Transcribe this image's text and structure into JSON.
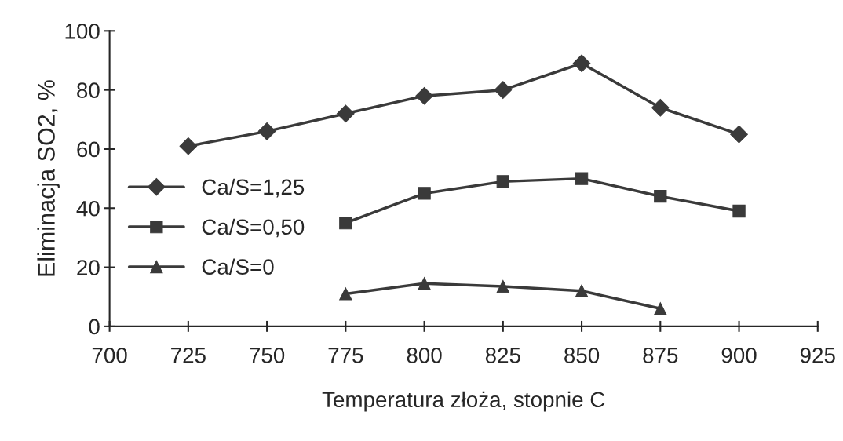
{
  "chart_data": {
    "type": "line",
    "xlabel": "Temperatura złoża, stopnie C",
    "ylabel": "Eliminacja SO2, %",
    "xlim": [
      700,
      925
    ],
    "xticks": [
      700,
      725,
      750,
      775,
      800,
      825,
      850,
      875,
      900,
      925
    ],
    "ylim": [
      0,
      100
    ],
    "yticks": [
      0,
      20,
      40,
      60,
      80,
      100
    ],
    "grid": false,
    "legend": "left",
    "series": [
      {
        "name": "Ca/S=1,25",
        "color": "#3a3a3a",
        "marker": "diamond",
        "x": [
          725,
          750,
          775,
          800,
          825,
          850,
          875,
          900
        ],
        "values": [
          61,
          66,
          72,
          78,
          80,
          89,
          74,
          65
        ]
      },
      {
        "name": "Ca/S=0,50",
        "color": "#3a3a3a",
        "marker": "square",
        "x": [
          775,
          800,
          825,
          850,
          875,
          900
        ],
        "values": [
          35,
          45,
          49,
          50,
          44,
          39
        ]
      },
      {
        "name": "Ca/S=0",
        "color": "#3a3a3a",
        "marker": "triangle",
        "x": [
          775,
          800,
          825,
          850,
          875
        ],
        "values": [
          11,
          14.5,
          13.5,
          12,
          6
        ]
      }
    ]
  }
}
